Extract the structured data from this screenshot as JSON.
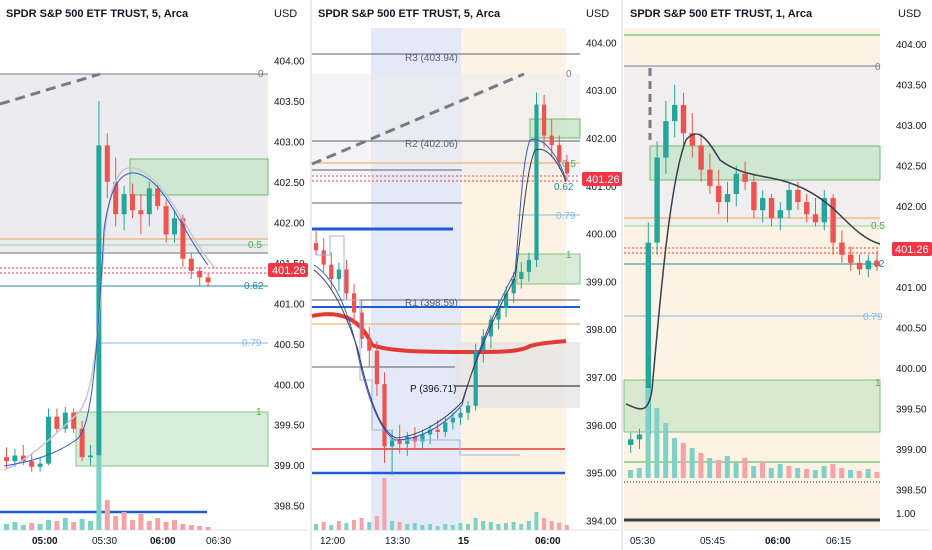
{
  "colors": {
    "up": "#26a69a",
    "down": "#ef5350",
    "price_badge": "#f23645",
    "fib_zone": "#c8e6c9",
    "fib_line": "#4caf50",
    "pivot_line": "#5d606b",
    "blue_level": "#1e5bd8",
    "red_level": "#e53935",
    "ema_dark": "#3a3f4b",
    "vwap_blue": "#2f5bd0",
    "volume_up": "#7fd1c7",
    "volume_down": "#f5a3a6"
  },
  "chart_data": [
    {
      "type": "candlestick",
      "title": "SPDR S&P 500 ETF TRUST, 5, Arca",
      "currency": "USD",
      "current_price": "401.26",
      "ylim": [
        398.2,
        404.4
      ],
      "y_ticks": [
        "404.00",
        "403.50",
        "403.00",
        "402.50",
        "402.00",
        "401.50",
        "401.00",
        "400.50",
        "400.00",
        "399.50",
        "399.00",
        "398.50"
      ],
      "x_ticks": [
        "05:00",
        "05:30",
        "06:00",
        "06:30"
      ],
      "fib_labels": [
        "0",
        "0.5",
        "0.62",
        "0.79",
        "1"
      ],
      "candles": [
        {
          "o": 399.1,
          "h": 399.22,
          "l": 398.95,
          "c": 399.05
        },
        {
          "o": 399.05,
          "h": 399.2,
          "l": 398.98,
          "c": 399.12
        },
        {
          "o": 399.12,
          "h": 399.25,
          "l": 399.0,
          "c": 399.05
        },
        {
          "o": 399.05,
          "h": 399.15,
          "l": 398.92,
          "c": 398.98
        },
        {
          "o": 398.98,
          "h": 399.1,
          "l": 398.92,
          "c": 399.02
        },
        {
          "o": 399.02,
          "h": 399.7,
          "l": 399.0,
          "c": 399.6
        },
        {
          "o": 399.6,
          "h": 399.7,
          "l": 399.4,
          "c": 399.45
        },
        {
          "o": 399.45,
          "h": 399.72,
          "l": 399.4,
          "c": 399.65
        },
        {
          "o": 399.65,
          "h": 399.7,
          "l": 399.4,
          "c": 399.45
        },
        {
          "o": 399.45,
          "h": 399.55,
          "l": 399.05,
          "c": 399.1
        },
        {
          "o": 399.1,
          "h": 399.25,
          "l": 399.0,
          "c": 399.12
        },
        {
          "o": 399.12,
          "h": 403.5,
          "l": 398.95,
          "c": 402.95
        },
        {
          "o": 402.95,
          "h": 403.1,
          "l": 402.3,
          "c": 402.5
        },
        {
          "o": 402.5,
          "h": 402.8,
          "l": 401.95,
          "c": 402.1
        },
        {
          "o": 402.1,
          "h": 402.45,
          "l": 401.9,
          "c": 402.35
        },
        {
          "o": 402.35,
          "h": 402.48,
          "l": 402.05,
          "c": 402.15
        },
        {
          "o": 402.15,
          "h": 402.35,
          "l": 401.85,
          "c": 402.1
        },
        {
          "o": 402.1,
          "h": 402.5,
          "l": 401.95,
          "c": 402.42
        },
        {
          "o": 402.42,
          "h": 402.48,
          "l": 402.15,
          "c": 402.2
        },
        {
          "o": 402.2,
          "h": 402.28,
          "l": 401.75,
          "c": 401.85
        },
        {
          "o": 401.85,
          "h": 402.15,
          "l": 401.75,
          "c": 402.05
        },
        {
          "o": 402.05,
          "h": 402.1,
          "l": 401.45,
          "c": 401.55
        },
        {
          "o": 401.55,
          "h": 401.62,
          "l": 401.3,
          "c": 401.4
        },
        {
          "o": 401.4,
          "h": 401.45,
          "l": 401.22,
          "c": 401.32
        },
        {
          "o": 401.32,
          "h": 401.38,
          "l": 401.2,
          "c": 401.26
        }
      ]
    },
    {
      "type": "candlestick",
      "title": "SPDR S&P 500 ETF TRUST, 5, Arca",
      "currency": "USD",
      "current_price": "401.26",
      "ylim": [
        393.8,
        404.3
      ],
      "y_ticks": [
        "404.00",
        "403.00",
        "402.00",
        "401.00",
        "400.00",
        "399.00",
        "398.00",
        "397.00",
        "396.00",
        "395.00",
        "394.00"
      ],
      "x_ticks": [
        "12:00",
        "13:30",
        "15",
        "06:00"
      ],
      "pivot_labels": [
        "R3 (403.94)",
        "R2 (402.06)",
        "R1 (398.59)",
        "P (396.71)"
      ],
      "fib_labels": [
        "0",
        "0.5",
        "0.62",
        "0.79",
        "1"
      ],
      "candles": [
        {
          "o": 399.8,
          "h": 400.05,
          "l": 399.55,
          "c": 399.65
        },
        {
          "o": 399.65,
          "h": 399.9,
          "l": 399.2,
          "c": 399.35
        },
        {
          "o": 399.35,
          "h": 399.6,
          "l": 398.85,
          "c": 399.05
        },
        {
          "o": 399.05,
          "h": 399.4,
          "l": 398.8,
          "c": 399.25
        },
        {
          "o": 399.25,
          "h": 399.45,
          "l": 398.6,
          "c": 398.75
        },
        {
          "o": 398.75,
          "h": 398.95,
          "l": 398.1,
          "c": 398.35
        },
        {
          "o": 398.35,
          "h": 398.6,
          "l": 397.6,
          "c": 397.8
        },
        {
          "o": 397.8,
          "h": 398.05,
          "l": 397.2,
          "c": 397.55
        },
        {
          "o": 397.55,
          "h": 397.75,
          "l": 396.6,
          "c": 396.85
        },
        {
          "o": 396.85,
          "h": 397.1,
          "l": 395.2,
          "c": 395.55
        },
        {
          "o": 395.55,
          "h": 395.9,
          "l": 394.95,
          "c": 395.7
        },
        {
          "o": 395.7,
          "h": 396.0,
          "l": 395.4,
          "c": 395.6
        },
        {
          "o": 395.6,
          "h": 395.85,
          "l": 395.35,
          "c": 395.75
        },
        {
          "o": 395.75,
          "h": 395.95,
          "l": 395.5,
          "c": 395.65
        },
        {
          "o": 395.65,
          "h": 395.9,
          "l": 395.5,
          "c": 395.8
        },
        {
          "o": 395.8,
          "h": 396.0,
          "l": 395.6,
          "c": 395.9
        },
        {
          "o": 395.9,
          "h": 396.1,
          "l": 395.7,
          "c": 395.85
        },
        {
          "o": 395.85,
          "h": 396.15,
          "l": 395.75,
          "c": 396.05
        },
        {
          "o": 396.05,
          "h": 396.25,
          "l": 395.9,
          "c": 396.15
        },
        {
          "o": 396.15,
          "h": 396.35,
          "l": 396.0,
          "c": 396.25
        },
        {
          "o": 396.25,
          "h": 396.5,
          "l": 396.1,
          "c": 396.4
        },
        {
          "o": 396.4,
          "h": 397.7,
          "l": 396.3,
          "c": 397.55
        },
        {
          "o": 397.55,
          "h": 398.0,
          "l": 397.3,
          "c": 397.85
        },
        {
          "o": 397.85,
          "h": 398.3,
          "l": 397.6,
          "c": 398.2
        },
        {
          "o": 398.2,
          "h": 398.6,
          "l": 398.0,
          "c": 398.45
        },
        {
          "o": 398.45,
          "h": 398.9,
          "l": 398.25,
          "c": 398.75
        },
        {
          "o": 398.75,
          "h": 399.2,
          "l": 398.55,
          "c": 399.05
        },
        {
          "o": 399.05,
          "h": 399.4,
          "l": 398.85,
          "c": 399.2
        },
        {
          "o": 399.2,
          "h": 399.6,
          "l": 399.0,
          "c": 399.45
        },
        {
          "o": 399.45,
          "h": 402.95,
          "l": 399.3,
          "c": 402.7
        },
        {
          "o": 402.7,
          "h": 402.9,
          "l": 401.8,
          "c": 402.05
        },
        {
          "o": 402.05,
          "h": 402.4,
          "l": 401.6,
          "c": 401.85
        },
        {
          "o": 401.85,
          "h": 402.05,
          "l": 401.35,
          "c": 401.5
        },
        {
          "o": 401.5,
          "h": 401.65,
          "l": 401.1,
          "c": 401.26
        }
      ]
    },
    {
      "type": "candlestick",
      "title": "SPDR S&P 500 ETF TRUST, 1, Arca",
      "currency": "USD",
      "current_price": "401.26",
      "ylim": [
        398.0,
        404.2
      ],
      "y_ticks": [
        "404.00",
        "403.50",
        "403.00",
        "402.50",
        "402.00",
        "401.50",
        "401.00",
        "400.50",
        "400.00",
        "399.50",
        "399.00",
        "398.50"
      ],
      "volume_tick": "1.00",
      "x_ticks": [
        "05:30",
        "05:45",
        "06:00",
        "06:15"
      ],
      "fib_labels": [
        "0",
        "0.5",
        "0.62",
        "0.79",
        "1"
      ],
      "candles": [
        {
          "o": 399.05,
          "h": 399.2,
          "l": 398.95,
          "c": 399.12
        },
        {
          "o": 399.12,
          "h": 399.25,
          "l": 399.0,
          "c": 399.18
        },
        {
          "o": 399.18,
          "h": 401.8,
          "l": 399.1,
          "c": 401.55
        },
        {
          "o": 401.55,
          "h": 402.8,
          "l": 401.4,
          "c": 402.6
        },
        {
          "o": 402.6,
          "h": 403.3,
          "l": 402.4,
          "c": 403.05
        },
        {
          "o": 403.05,
          "h": 403.5,
          "l": 402.85,
          "c": 403.25
        },
        {
          "o": 403.25,
          "h": 403.4,
          "l": 402.7,
          "c": 402.9
        },
        {
          "o": 402.9,
          "h": 403.15,
          "l": 402.6,
          "c": 402.75
        },
        {
          "o": 402.75,
          "h": 402.9,
          "l": 402.3,
          "c": 402.45
        },
        {
          "o": 402.45,
          "h": 402.65,
          "l": 402.15,
          "c": 402.25
        },
        {
          "o": 402.25,
          "h": 402.45,
          "l": 401.9,
          "c": 402.05
        },
        {
          "o": 402.05,
          "h": 402.3,
          "l": 401.8,
          "c": 402.15
        },
        {
          "o": 402.15,
          "h": 402.5,
          "l": 402.0,
          "c": 402.4
        },
        {
          "o": 402.4,
          "h": 402.55,
          "l": 402.2,
          "c": 402.3
        },
        {
          "o": 402.3,
          "h": 402.4,
          "l": 401.85,
          "c": 401.95
        },
        {
          "o": 401.95,
          "h": 402.2,
          "l": 401.8,
          "c": 402.1
        },
        {
          "o": 402.1,
          "h": 402.15,
          "l": 401.75,
          "c": 401.85
        },
        {
          "o": 401.85,
          "h": 402.05,
          "l": 401.7,
          "c": 401.95
        },
        {
          "o": 401.95,
          "h": 402.3,
          "l": 401.85,
          "c": 402.2
        },
        {
          "o": 402.2,
          "h": 402.3,
          "l": 401.95,
          "c": 402.05
        },
        {
          "o": 402.05,
          "h": 402.15,
          "l": 401.8,
          "c": 401.9
        },
        {
          "o": 401.9,
          "h": 402.1,
          "l": 401.75,
          "c": 401.8
        },
        {
          "o": 401.8,
          "h": 402.2,
          "l": 401.7,
          "c": 402.1
        },
        {
          "o": 402.1,
          "h": 402.15,
          "l": 401.4,
          "c": 401.55
        },
        {
          "o": 401.55,
          "h": 401.7,
          "l": 401.3,
          "c": 401.4
        },
        {
          "o": 401.4,
          "h": 401.5,
          "l": 401.2,
          "c": 401.3
        },
        {
          "o": 401.3,
          "h": 401.4,
          "l": 401.15,
          "c": 401.22
        },
        {
          "o": 401.22,
          "h": 401.4,
          "l": 401.12,
          "c": 401.32
        },
        {
          "o": 401.32,
          "h": 401.45,
          "l": 401.2,
          "c": 401.26
        }
      ]
    }
  ]
}
